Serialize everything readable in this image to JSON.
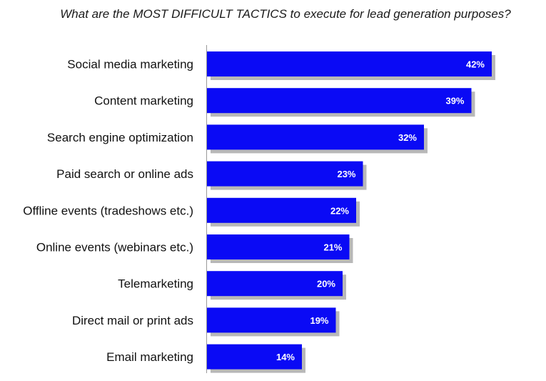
{
  "chart_data": {
    "type": "bar",
    "orientation": "horizontal",
    "title": "What are the MOST DIFFICULT TACTICS to execute for lead generation purposes?",
    "categories": [
      "Social media marketing",
      "Content marketing",
      "Search engine optimization",
      "Paid search or online ads",
      "Offline events (tradeshows etc.)",
      "Online events (webinars etc.)",
      "Telemarketing",
      "Direct mail or print ads",
      "Email marketing"
    ],
    "values": [
      42,
      39,
      32,
      23,
      22,
      21,
      20,
      19,
      14
    ],
    "value_labels": [
      "42%",
      "39%",
      "32%",
      "23%",
      "22%",
      "21%",
      "20%",
      "19%",
      "14%"
    ],
    "xlim": [
      0,
      50
    ],
    "grid": false,
    "legend": "none",
    "bar_color": "#0a0af5",
    "shadow_color": "#b8b8b8"
  }
}
